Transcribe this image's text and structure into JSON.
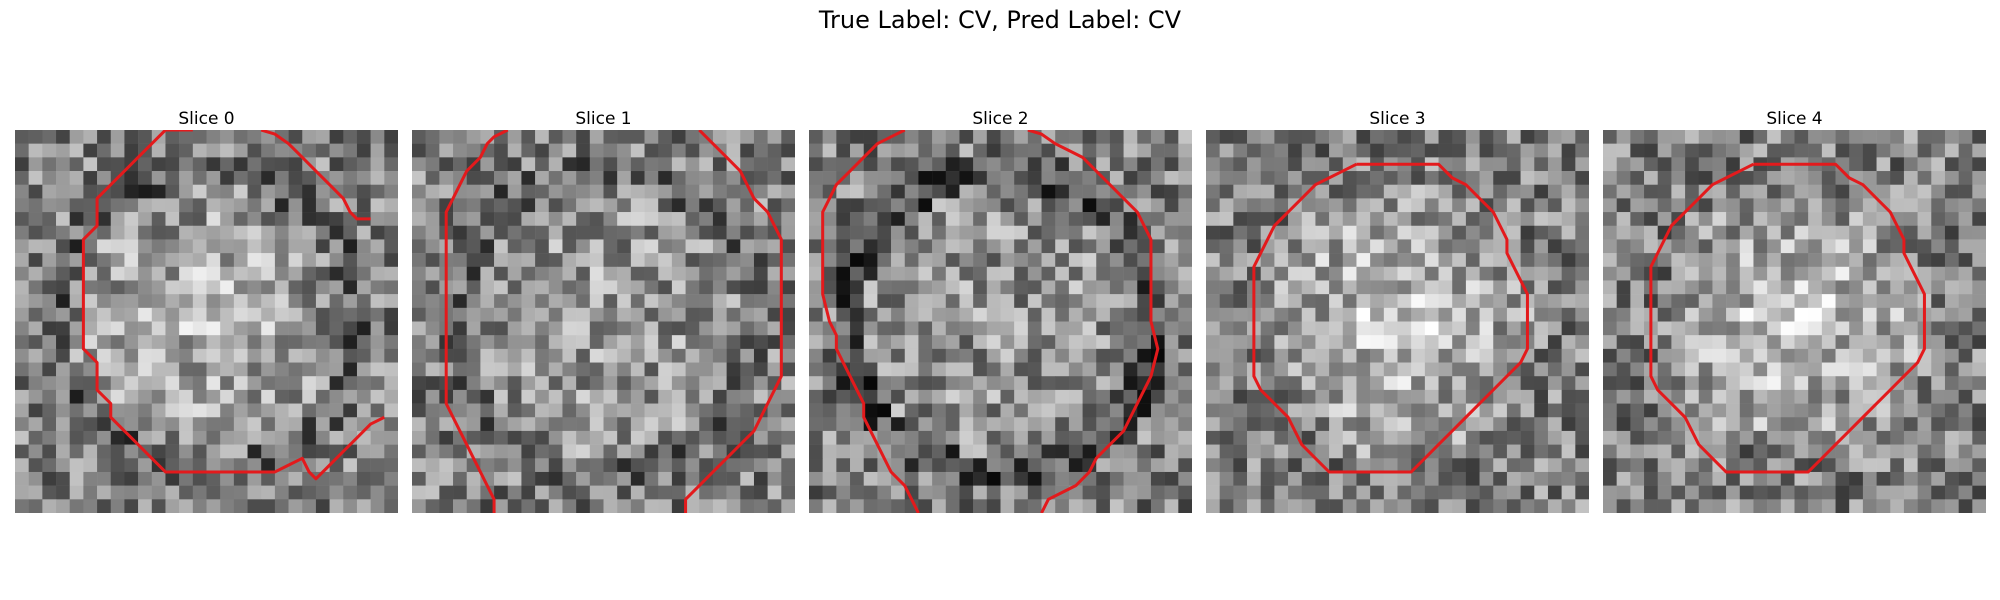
{
  "figure": {
    "title": "True Label: CV, Pred Label: CV"
  },
  "panels": [
    {
      "title": "Slice 0",
      "contour_color": "#e31a1c",
      "seed": 11,
      "center": 0.72,
      "dark_border": 0.18,
      "contour": [
        [
          13,
          0
        ],
        [
          11,
          0
        ],
        [
          10,
          1
        ],
        [
          9,
          2
        ],
        [
          8,
          3
        ],
        [
          7,
          4
        ],
        [
          6,
          5
        ],
        [
          6,
          7
        ],
        [
          5,
          8
        ],
        [
          5,
          10
        ],
        [
          5,
          12
        ],
        [
          5,
          14
        ],
        [
          5,
          16
        ],
        [
          6,
          17
        ],
        [
          6,
          19
        ],
        [
          7,
          20
        ],
        [
          7,
          21
        ],
        [
          8,
          22
        ],
        [
          9,
          23
        ],
        [
          10,
          24
        ],
        [
          11,
          25
        ],
        [
          13,
          25
        ],
        [
          15,
          25
        ],
        [
          17,
          25
        ],
        [
          19,
          25
        ],
        [
          20,
          24.5
        ],
        [
          21,
          24
        ],
        [
          21.5,
          25
        ],
        [
          22,
          25.5
        ],
        [
          23,
          24.5
        ],
        [
          24,
          23.5
        ],
        [
          25,
          22.5
        ],
        [
          26,
          21.5
        ],
        [
          27,
          21
        ]
      ],
      "contour2": [
        [
          18,
          0
        ],
        [
          19,
          0.3
        ],
        [
          20,
          1
        ],
        [
          21,
          2
        ],
        [
          22,
          3
        ],
        [
          23,
          4
        ],
        [
          24,
          5
        ],
        [
          24.5,
          6
        ],
        [
          25,
          6.5
        ],
        [
          26,
          6.5
        ]
      ]
    },
    {
      "title": "Slice 1",
      "contour_color": "#e31a1c",
      "seed": 23,
      "center": 0.62,
      "dark_border": 0.22,
      "contour": [
        [
          7,
          0
        ],
        [
          6,
          0.5
        ],
        [
          5.5,
          1
        ],
        [
          5,
          2
        ],
        [
          4,
          3
        ],
        [
          3.5,
          4
        ],
        [
          3,
          5
        ],
        [
          2.5,
          6
        ],
        [
          2.5,
          8
        ],
        [
          2.5,
          10
        ],
        [
          2.5,
          12
        ],
        [
          2.5,
          14
        ],
        [
          2.5,
          16
        ],
        [
          2.5,
          18
        ],
        [
          2.5,
          20
        ],
        [
          3,
          21
        ],
        [
          3.5,
          22
        ],
        [
          4,
          23
        ],
        [
          4.5,
          24
        ],
        [
          5,
          25
        ],
        [
          5.5,
          26
        ],
        [
          6,
          27
        ],
        [
          6,
          28
        ]
      ],
      "contour2": [
        [
          21,
          0
        ],
        [
          22,
          1
        ],
        [
          23,
          2
        ],
        [
          24,
          3
        ],
        [
          24.5,
          4
        ],
        [
          25,
          5
        ],
        [
          26,
          6
        ],
        [
          26.5,
          7
        ],
        [
          27,
          8
        ],
        [
          27,
          10
        ],
        [
          27,
          12
        ],
        [
          27,
          14
        ],
        [
          27,
          16
        ],
        [
          27,
          18
        ],
        [
          26.5,
          19
        ],
        [
          26,
          20
        ],
        [
          25.5,
          21
        ],
        [
          25,
          22
        ],
        [
          24,
          23
        ],
        [
          23,
          24
        ],
        [
          22,
          25
        ],
        [
          21,
          26
        ],
        [
          20,
          27
        ],
        [
          20,
          28
        ]
      ]
    },
    {
      "title": "Slice 2",
      "contour_color": "#e31a1c",
      "seed": 37,
      "center": 0.58,
      "dark_border": 0.1,
      "contour": [
        [
          7,
          0
        ],
        [
          6,
          0.5
        ],
        [
          5,
          1
        ],
        [
          4,
          2
        ],
        [
          3,
          3
        ],
        [
          2,
          4
        ],
        [
          1.5,
          5
        ],
        [
          1,
          6
        ],
        [
          1,
          8
        ],
        [
          1,
          10
        ],
        [
          1,
          12
        ],
        [
          1.5,
          14
        ],
        [
          2,
          15
        ],
        [
          2,
          16
        ],
        [
          2.5,
          17
        ],
        [
          3,
          18
        ],
        [
          3.5,
          19
        ],
        [
          4,
          20
        ],
        [
          4,
          21
        ],
        [
          4.5,
          22
        ],
        [
          5,
          23
        ],
        [
          5.5,
          24
        ],
        [
          6,
          25
        ],
        [
          7,
          26
        ],
        [
          7.5,
          27
        ],
        [
          8,
          28
        ]
      ],
      "contour2": [
        [
          16,
          0
        ],
        [
          17,
          0.3
        ],
        [
          18,
          1
        ],
        [
          19,
          1.5
        ],
        [
          20,
          2
        ],
        [
          21,
          3
        ],
        [
          22,
          4
        ],
        [
          23,
          5
        ],
        [
          24,
          6
        ],
        [
          24.5,
          7
        ],
        [
          25,
          8
        ],
        [
          25,
          10
        ],
        [
          25,
          12
        ],
        [
          25,
          14
        ],
        [
          25.5,
          16
        ],
        [
          25,
          18
        ],
        [
          24.5,
          19
        ],
        [
          24,
          20
        ],
        [
          23.5,
          21
        ],
        [
          23,
          22
        ],
        [
          22,
          23
        ],
        [
          21,
          24
        ],
        [
          20.5,
          25
        ],
        [
          19.5,
          26
        ],
        [
          18.5,
          26.5
        ],
        [
          17.5,
          27
        ],
        [
          17,
          28
        ]
      ]
    },
    {
      "title": "Slice 3",
      "contour_color": "#e31a1c",
      "seed": 53,
      "center": 0.8,
      "dark_border": 0.3,
      "contour": [
        [
          11,
          2.5
        ],
        [
          13,
          2.5
        ],
        [
          15,
          2.5
        ],
        [
          17,
          2.5
        ],
        [
          18,
          3.5
        ],
        [
          19,
          4
        ],
        [
          20,
          5
        ],
        [
          21,
          6
        ],
        [
          21.5,
          7
        ],
        [
          22,
          8
        ],
        [
          22,
          9
        ],
        [
          22.5,
          10
        ],
        [
          23,
          11
        ],
        [
          23.5,
          12
        ],
        [
          23.5,
          14
        ],
        [
          23.5,
          16
        ],
        [
          23,
          17
        ],
        [
          22,
          18
        ],
        [
          21,
          19
        ],
        [
          20,
          20
        ],
        [
          19,
          21
        ],
        [
          18,
          22
        ],
        [
          17,
          23
        ],
        [
          16,
          24
        ],
        [
          15,
          25
        ],
        [
          13,
          25
        ],
        [
          11,
          25
        ],
        [
          9,
          25
        ],
        [
          8,
          24
        ],
        [
          7,
          23
        ],
        [
          6.5,
          22
        ],
        [
          6,
          21
        ],
        [
          5,
          20
        ],
        [
          4,
          19
        ],
        [
          3.5,
          18
        ],
        [
          3.5,
          16
        ],
        [
          3.5,
          14
        ],
        [
          3.5,
          12
        ],
        [
          3.5,
          10
        ],
        [
          4,
          9
        ],
        [
          4.5,
          8
        ],
        [
          5,
          7
        ],
        [
          6,
          6
        ],
        [
          7,
          5
        ],
        [
          8,
          4
        ],
        [
          9,
          3.5
        ],
        [
          10,
          3
        ],
        [
          11,
          2.5
        ]
      ]
    },
    {
      "title": "Slice 4",
      "contour_color": "#e31a1c",
      "seed": 71,
      "center": 0.8,
      "dark_border": 0.3,
      "contour": [
        [
          11,
          2.5
        ],
        [
          13,
          2.5
        ],
        [
          15,
          2.5
        ],
        [
          17,
          2.5
        ],
        [
          18,
          3.5
        ],
        [
          19,
          4
        ],
        [
          20,
          5
        ],
        [
          21,
          6
        ],
        [
          21.5,
          7
        ],
        [
          22,
          8
        ],
        [
          22,
          9
        ],
        [
          22.5,
          10
        ],
        [
          23,
          11
        ],
        [
          23.5,
          12
        ],
        [
          23.5,
          14
        ],
        [
          23.5,
          16
        ],
        [
          23,
          17
        ],
        [
          22,
          18
        ],
        [
          21,
          19
        ],
        [
          20,
          20
        ],
        [
          19,
          21
        ],
        [
          18,
          22
        ],
        [
          17,
          23
        ],
        [
          16,
          24
        ],
        [
          15,
          25
        ],
        [
          13,
          25
        ],
        [
          11,
          25
        ],
        [
          9,
          25
        ],
        [
          8,
          24
        ],
        [
          7,
          23
        ],
        [
          6.5,
          22
        ],
        [
          6,
          21
        ],
        [
          5,
          20
        ],
        [
          4,
          19
        ],
        [
          3.5,
          18
        ],
        [
          3.5,
          16
        ],
        [
          3.5,
          14
        ],
        [
          3.5,
          12
        ],
        [
          3.5,
          10
        ],
        [
          4,
          9
        ],
        [
          4.5,
          8
        ],
        [
          5,
          7
        ],
        [
          6,
          6
        ],
        [
          7,
          5
        ],
        [
          8,
          4
        ],
        [
          9,
          3.5
        ],
        [
          10,
          3
        ],
        [
          11,
          2.5
        ]
      ]
    }
  ]
}
